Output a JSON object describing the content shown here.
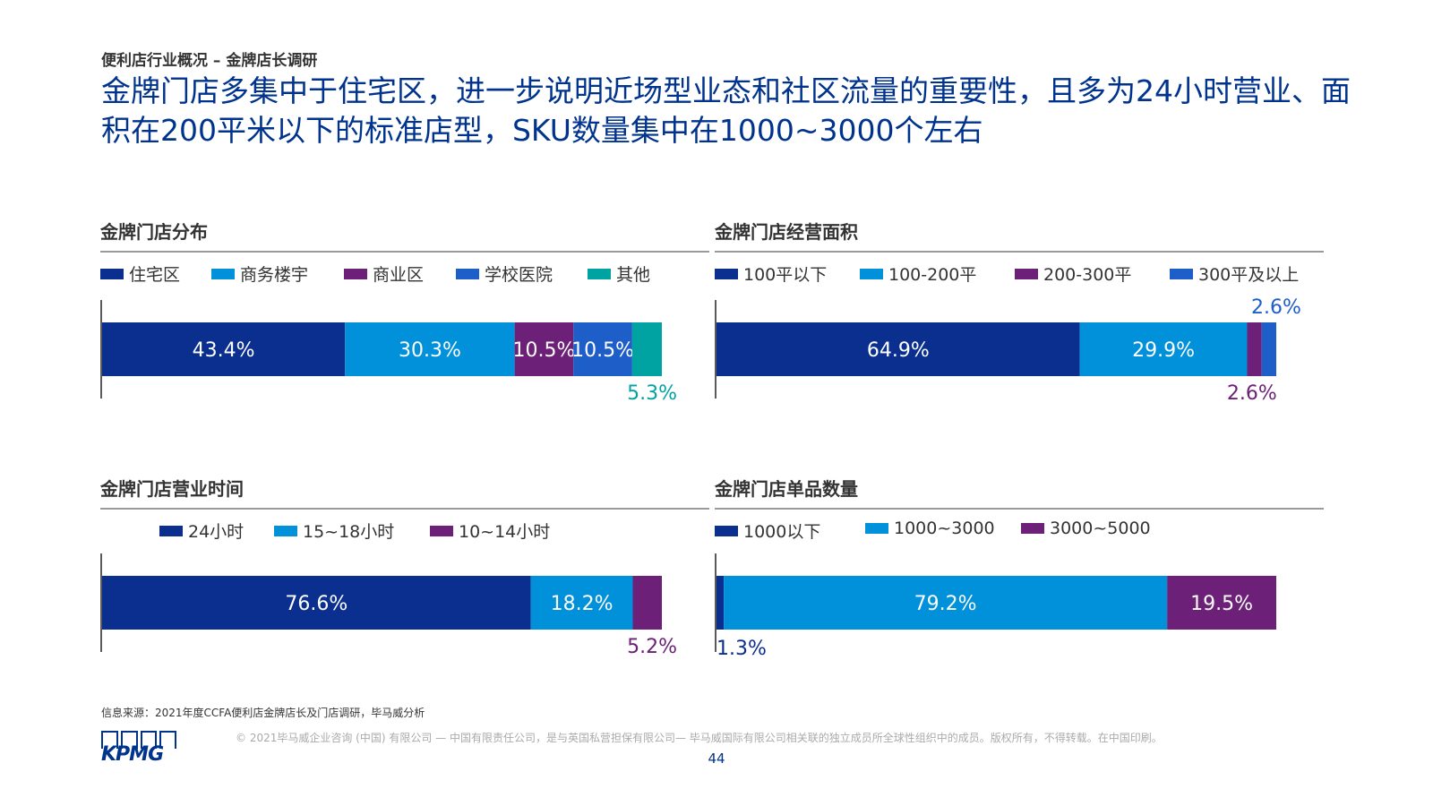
{
  "header": {
    "subtitle": "便利店行业概况 – 金牌店长调研",
    "headline": "金牌门店多集中于住宅区，进一步说明近场型业态和社区流量的重要性，且多为24小时营业、面积在200平米以下的标准店型，SKU数量集中在1000~3000个左右"
  },
  "footer": {
    "source": "信息来源：2021年度CCFA便利店金牌店长及门店调研，毕马威分析",
    "logo_text": "KPMG",
    "copyright": "© 2021毕马威企业咨询 (中国) 有限公司 — 中国有限责任公司，是与英国私营担保有限公司— 毕马威国际有限公司相关联的独立成员所全球性组织中的成员。版权所有，不得转载。在中国印刷。",
    "page_number": "44"
  },
  "colors": {
    "navy": "#0A2F8F",
    "light_blue": "#0091DA",
    "purple": "#6D2077",
    "blue": "#1E5EC8",
    "teal": "#00A3A1",
    "title_blue": "#00338D"
  },
  "chart_data": [
    {
      "type": "bar",
      "orientation": "horizontal-stacked",
      "title": "金牌门店分布",
      "unit": "%",
      "series": [
        {
          "name": "住宅区",
          "value": 43.4,
          "label": "43.4%",
          "color": "#0A2F8F"
        },
        {
          "name": "商务楼宇",
          "value": 30.3,
          "label": "30.3%",
          "color": "#0091DA"
        },
        {
          "name": "商业区",
          "value": 10.5,
          "label": "10.5%",
          "color": "#6D2077"
        },
        {
          "name": "学校医院",
          "value": 10.5,
          "label": "10.5%",
          "color": "#1E5EC8"
        },
        {
          "name": "其他",
          "value": 5.3,
          "label": "5.3%",
          "color": "#00A3A1"
        }
      ]
    },
    {
      "type": "bar",
      "orientation": "horizontal-stacked",
      "title": "金牌门店经营面积",
      "unit": "%",
      "series": [
        {
          "name": "100平以下",
          "value": 64.9,
          "label": "64.9%",
          "color": "#0A2F8F"
        },
        {
          "name": "100-200平",
          "value": 29.9,
          "label": "29.9%",
          "color": "#0091DA"
        },
        {
          "name": "200-300平",
          "value": 2.6,
          "label": "2.6%",
          "color": "#6D2077"
        },
        {
          "name": "300平及以上",
          "value": 2.6,
          "label": "2.6%",
          "color": "#1E5EC8"
        }
      ]
    },
    {
      "type": "bar",
      "orientation": "horizontal-stacked",
      "title": "金牌门店营业时间",
      "unit": "%",
      "series": [
        {
          "name": "24小时",
          "value": 76.6,
          "label": "76.6%",
          "color": "#0A2F8F"
        },
        {
          "name": "15~18小时",
          "value": 18.2,
          "label": "18.2%",
          "color": "#0091DA"
        },
        {
          "name": "10~14小时",
          "value": 5.2,
          "label": "5.2%",
          "color": "#6D2077"
        }
      ]
    },
    {
      "type": "bar",
      "orientation": "horizontal-stacked",
      "title": "金牌门店单品数量",
      "unit": "%",
      "series": [
        {
          "name": "1000以下",
          "value": 1.3,
          "label": "1.3%",
          "color": "#0A2F8F"
        },
        {
          "name": "1000~3000",
          "value": 79.2,
          "label": "79.2%",
          "color": "#0091DA"
        },
        {
          "name": "3000~5000",
          "value": 19.5,
          "label": "19.5%",
          "color": "#6D2077"
        }
      ]
    }
  ]
}
